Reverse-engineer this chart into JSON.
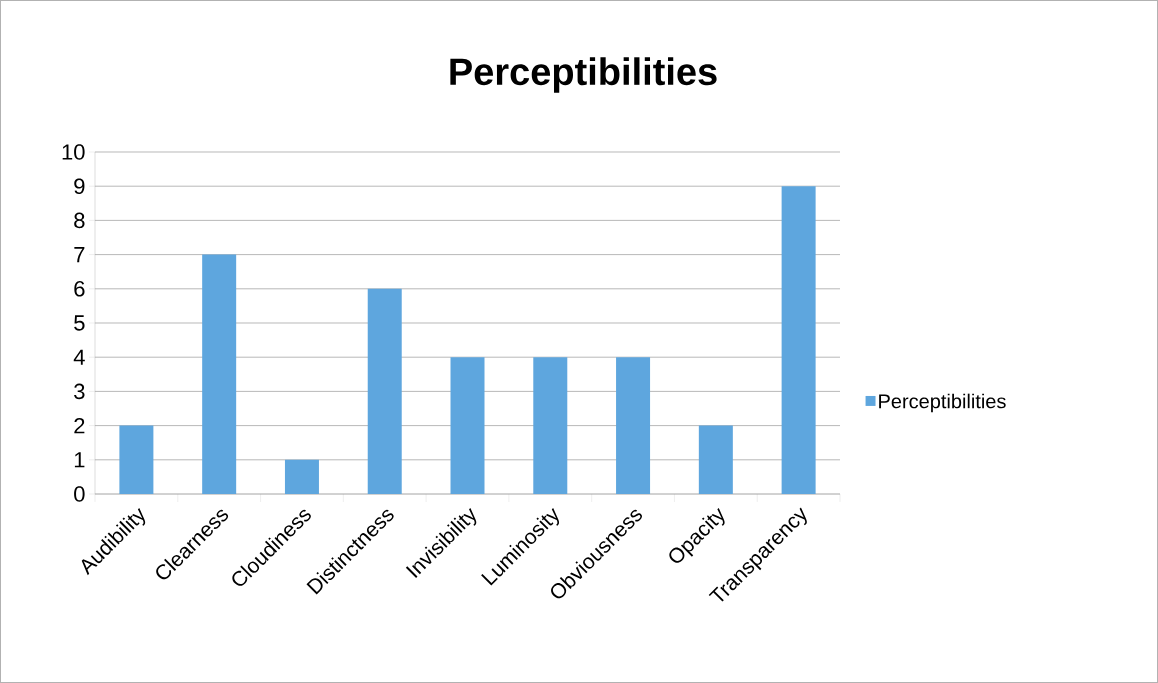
{
  "chart_data": {
    "type": "bar",
    "title": "Perceptibilities",
    "categories": [
      "Audibility",
      "Clearness",
      "Cloudiness",
      "Distinctness",
      "Invisibility",
      "Luminosity",
      "Obviousness",
      "Opacity",
      "Transparency"
    ],
    "series": [
      {
        "name": "Perceptibilities",
        "color": "#5ea6de",
        "values": [
          2,
          7,
          1,
          6,
          4,
          4,
          4,
          2,
          9
        ]
      }
    ],
    "ylim": [
      0,
      10
    ],
    "yticks": [
      0,
      1,
      2,
      3,
      4,
      5,
      6,
      7,
      8,
      9,
      10
    ],
    "grid": "y",
    "legend": "right"
  }
}
